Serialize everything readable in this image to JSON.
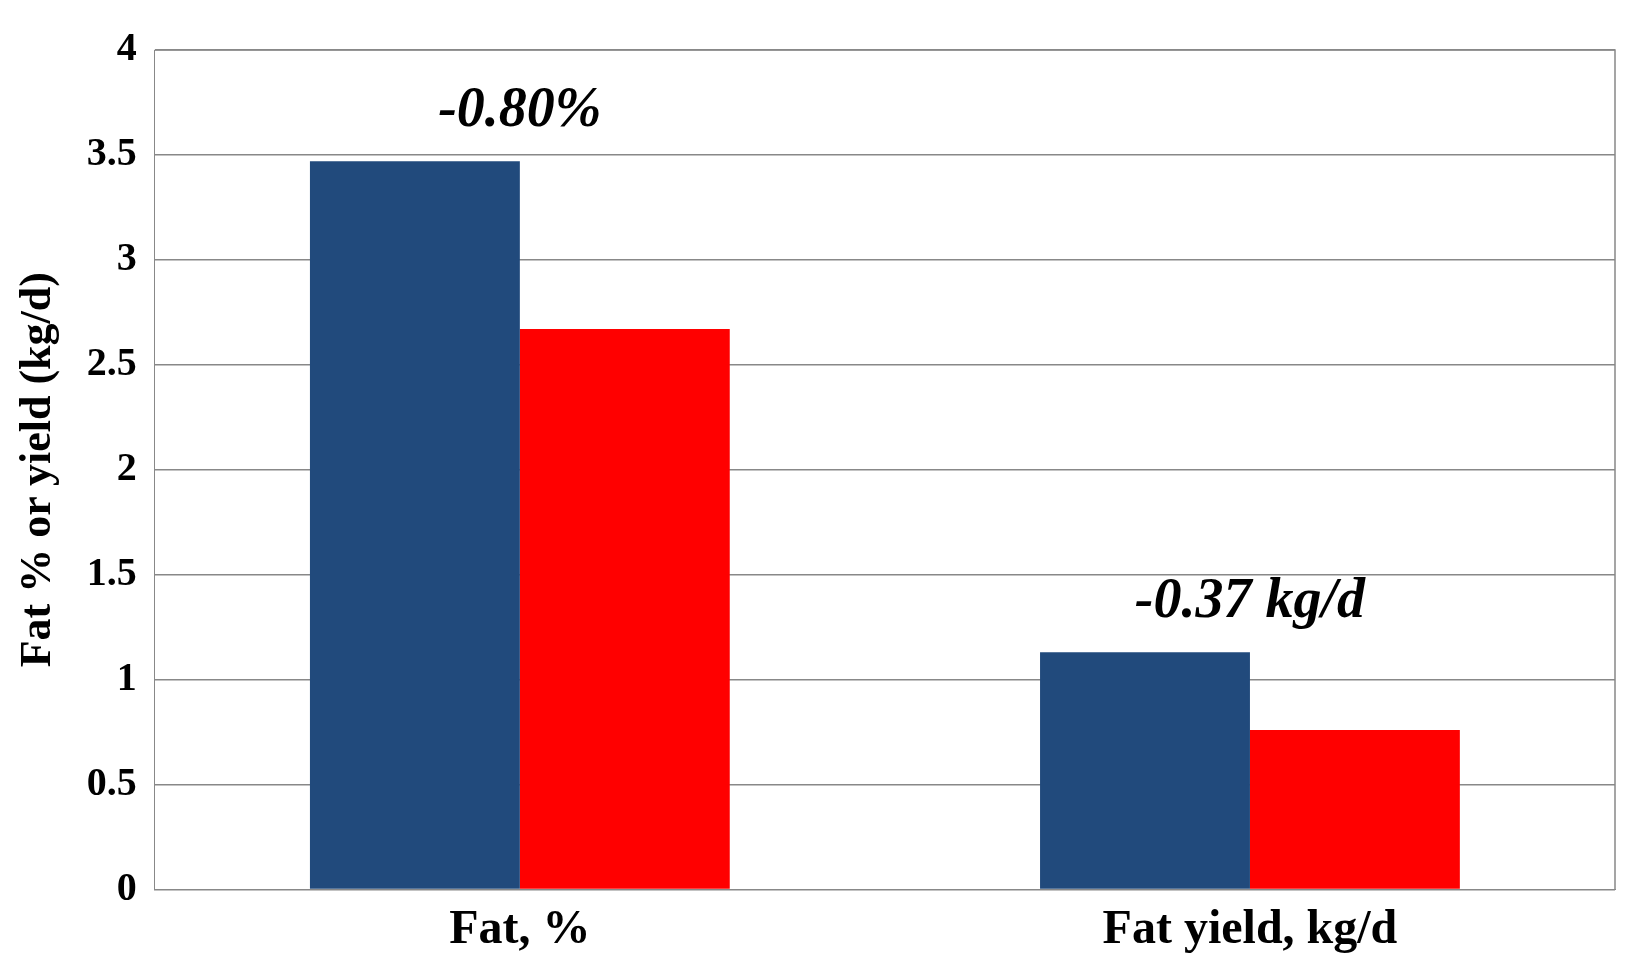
{
  "chart_data": {
    "type": "bar",
    "ylabel": "Fat % or yield (kg/d)",
    "categories": [
      "Fat, %",
      "Fat yield, kg/d"
    ],
    "series": [
      {
        "color": "#214a7c",
        "values": [
          3.47,
          1.13
        ]
      },
      {
        "color": "#ff0000",
        "values": [
          2.67,
          0.76
        ]
      }
    ],
    "ylim": [
      0,
      4
    ],
    "yticks": [
      0,
      0.5,
      1,
      1.5,
      2,
      2.5,
      3,
      3.5,
      4
    ],
    "grid": "y",
    "legend": false,
    "annotations": [
      "-0.80%",
      "-0.37 kg/d"
    ]
  }
}
